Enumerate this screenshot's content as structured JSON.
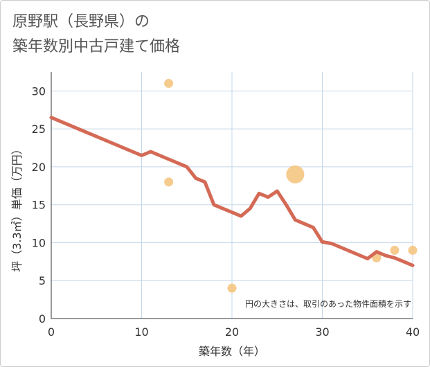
{
  "title_line1": "原野駅（長野県）の",
  "title_line2": "築年数別中古戸建て価格",
  "chart_data": {
    "type": "scatter",
    "xlabel": "築年数（年）",
    "ylabel": "坪（3.3㎡）単価（万円）",
    "xlim": [
      0,
      40
    ],
    "ylim": [
      0,
      32.5
    ],
    "xticks": [
      0,
      10,
      20,
      30,
      40
    ],
    "yticks": [
      0,
      5,
      10,
      15,
      20,
      25,
      30
    ],
    "grid": true,
    "note": "円の大きさは、取引のあった物件面積を示す",
    "colors": {
      "line": "#d46a55",
      "bubble": "#f5c27a",
      "grid": "#c5d7e8",
      "axis": "#333333"
    },
    "trend_line": {
      "x": [
        0,
        10,
        11,
        12,
        13,
        14,
        15,
        16,
        17,
        18,
        19,
        20,
        21,
        22,
        23,
        24,
        25,
        26,
        27,
        28,
        29,
        30,
        31,
        32,
        33,
        34,
        35,
        36,
        37,
        38,
        39,
        40
      ],
      "y": [
        26.5,
        21.5,
        22.0,
        21.5,
        21.0,
        20.5,
        20.0,
        18.5,
        18.0,
        15.0,
        14.5,
        14.0,
        13.5,
        14.5,
        16.5,
        16.0,
        16.8,
        15.0,
        13.0,
        12.5,
        12.0,
        10.1,
        9.9,
        9.4,
        8.9,
        8.4,
        7.9,
        8.8,
        8.3,
        8.0,
        7.5,
        7.0
      ]
    },
    "points": [
      {
        "x": 13,
        "y": 31,
        "size": 1
      },
      {
        "x": 13,
        "y": 18,
        "size": 1
      },
      {
        "x": 20,
        "y": 4,
        "size": 1
      },
      {
        "x": 27,
        "y": 19,
        "size": 4
      },
      {
        "x": 36,
        "y": 8,
        "size": 1
      },
      {
        "x": 38,
        "y": 9,
        "size": 1
      },
      {
        "x": 40,
        "y": 9,
        "size": 1
      }
    ]
  }
}
